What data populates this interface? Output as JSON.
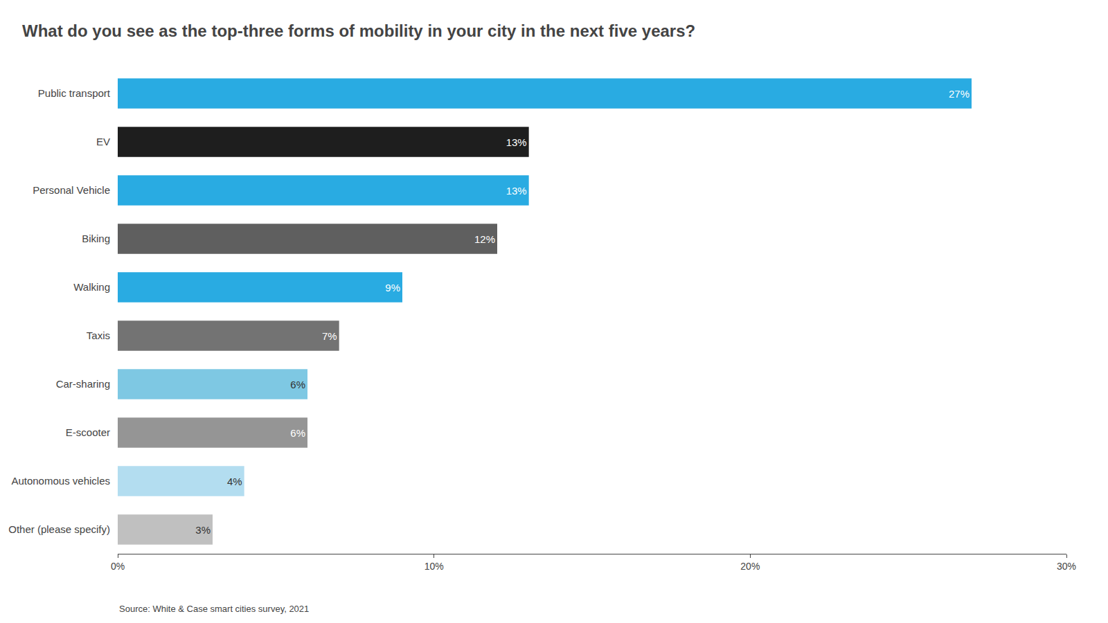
{
  "chart_data": {
    "type": "bar",
    "orientation": "horizontal",
    "title": "What do you see as the top-three forms of mobility in your city in the next five years?",
    "categories": [
      "Public transport",
      "EV",
      "Personal Vehicle",
      "Biking",
      "Walking",
      "Taxis",
      "Car-sharing",
      "E-scooter",
      "Autonomous vehicles",
      "Other (please specify)"
    ],
    "values": [
      27,
      13,
      13,
      12,
      9,
      7,
      6,
      6,
      4,
      3
    ],
    "value_labels": [
      "27%",
      "13%",
      "13%",
      "12%",
      "9%",
      "7%",
      "6%",
      "6%",
      "4%",
      "3%"
    ],
    "data_labels": true,
    "colors": [
      "#29abe2",
      "#1e1e1e",
      "#29abe2",
      "#5f5f5f",
      "#29abe2",
      "#737373",
      "#7ec8e3",
      "#959595",
      "#b3ddf0",
      "#c0c0c0"
    ],
    "xlim": [
      0,
      30
    ],
    "xticks": [
      {
        "value": 0,
        "label": "0%"
      },
      {
        "value": 10,
        "label": "10%"
      },
      {
        "value": 20,
        "label": "20%"
      },
      {
        "value": 30,
        "label": "30%"
      }
    ],
    "grid": false,
    "annotations": [
      "Source: White & Case smart cities survey, 2021"
    ]
  }
}
